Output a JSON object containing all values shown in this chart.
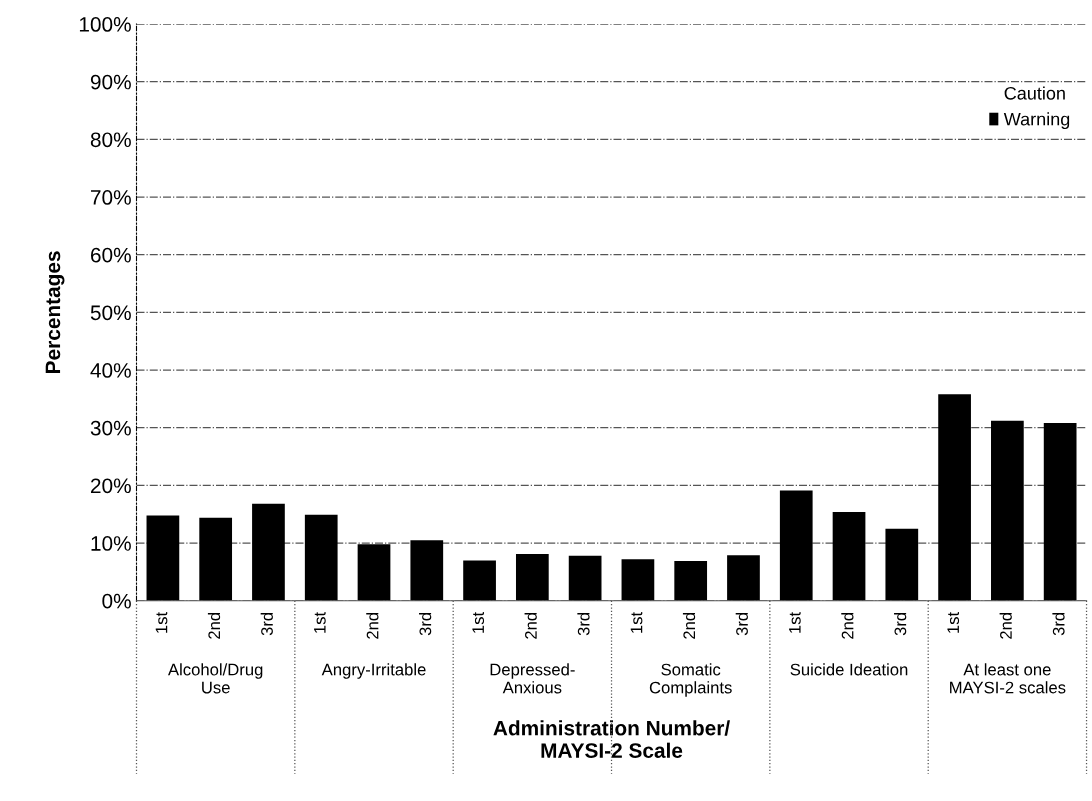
{
  "chart_data": {
    "type": "bar",
    "stacked": true,
    "categories": [
      "1st",
      "2nd",
      "3rd",
      "1st",
      "2nd",
      "3rd",
      "1st",
      "2nd",
      "3rd",
      "1st",
      "2nd",
      "3rd",
      "1st",
      "2nd",
      "3rd",
      "1st",
      "2nd",
      "3rd"
    ],
    "series": [
      {
        "name": "Warning",
        "color": "#000000",
        "values": [
          14.8,
          14.4,
          16.8,
          14.9,
          9.8,
          10.5,
          7.0,
          8.1,
          7.8,
          7.2,
          6.9,
          7.9,
          19.1,
          15.4,
          12.5,
          35.8,
          31.2,
          30.8
        ]
      },
      {
        "name": "Caution",
        "values": [
          null,
          null,
          null,
          null,
          null,
          null,
          null,
          null,
          null,
          null,
          null,
          null,
          null,
          null,
          null,
          null,
          null,
          null
        ]
      }
    ],
    "ylabel": "Percentages",
    "xlabel": "Administration Number/\nMAYSI-2 Scale",
    "ylim": [
      0,
      100
    ],
    "yticks": [
      {
        "value": 0,
        "label": "0%"
      },
      {
        "value": 10,
        "label": "10%"
      },
      {
        "value": 20,
        "label": "20%"
      },
      {
        "value": 30,
        "label": "30%"
      },
      {
        "value": 40,
        "label": "40%"
      },
      {
        "value": 50,
        "label": "50%"
      },
      {
        "value": 60,
        "label": "60%"
      },
      {
        "value": 70,
        "label": "70%"
      },
      {
        "value": 80,
        "label": "80%"
      },
      {
        "value": 90,
        "label": "90%"
      },
      {
        "value": 100,
        "label": "100%"
      }
    ],
    "annotations": [
      "Alcohol/Drug\nUse",
      "Angry-Irritable",
      "Depressed-\nAnxious",
      "Somatic\nComplaints",
      "Suicide Ideation",
      "At least one\nMAYSI-2 scales"
    ],
    "grid": "y",
    "legend": "top right"
  }
}
